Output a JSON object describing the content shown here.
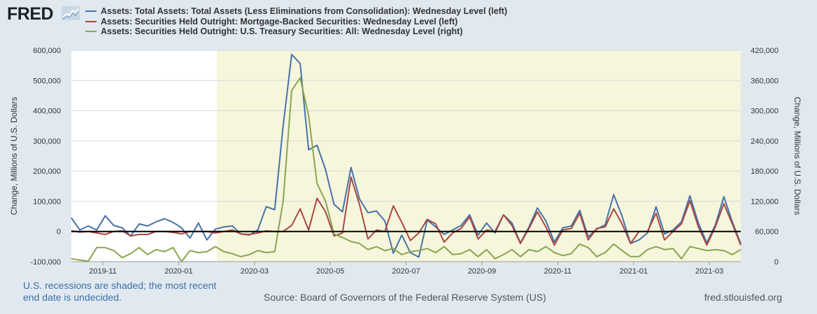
{
  "brand": {
    "logo_text": "FRED",
    "logo_icon": "chart-line-icon"
  },
  "legend": [
    {
      "label": "Assets: Total Assets: Total Assets (Less Eliminations from Consolidation): Wednesday Level (left)",
      "color": "#4572a7"
    },
    {
      "label": "Assets: Securities Held Outright: Mortgage-Backed Securities: Wednesday Level (left)",
      "color": "#aa4643"
    },
    {
      "label": "Assets: Securities Held Outright: U.S. Treasury Securities: All: Wednesday Level (right)",
      "color": "#89a54e"
    }
  ],
  "footer": {
    "recession_note": "U.S. recessions are shaded; the most recent end date is undecided.",
    "source": "Source: Board of Governors of the Federal Reserve System (US)",
    "url": "fred.stlouisfed.org"
  },
  "chart_data": {
    "type": "line",
    "ylabel_left": "Change, Millions of U.S. Dollars",
    "ylabel_right": "Change, Millions of U.S. Dollars",
    "ylim_left": [
      -100000,
      600000
    ],
    "ylim_right": [
      0,
      420000
    ],
    "yticks_left": [
      "-100,000",
      "0",
      "100,000",
      "200,000",
      "300,000",
      "400,000",
      "500,000",
      "600,000"
    ],
    "yticks_right": [
      "0",
      "60,000",
      "120,000",
      "180,000",
      "240,000",
      "300,000",
      "360,000",
      "420,000"
    ],
    "xticks": [
      "2019-11",
      "2020-01",
      "2020-03",
      "2020-05",
      "2020-07",
      "2020-09",
      "2020-11",
      "2021-01",
      "2021-03"
    ],
    "recession": {
      "start": "2020-02",
      "end": "ongoing"
    },
    "series": [
      {
        "name": "Total Assets (left)",
        "axis": "left",
        "values": [
          45000,
          5000,
          18000,
          5000,
          52000,
          20000,
          12000,
          -15000,
          25000,
          18000,
          32000,
          42000,
          30000,
          12000,
          -22000,
          28000,
          -28000,
          8000,
          15000,
          18000,
          -8000,
          -12000,
          5000,
          82000,
          72000,
          350000,
          586000,
          556000,
          270000,
          285000,
          205000,
          90000,
          65000,
          212000,
          108000,
          62000,
          68000,
          35000,
          -72000,
          -12000,
          -70000,
          -85000,
          38000,
          15000,
          -10000,
          5000,
          20000,
          55000,
          -12000,
          28000,
          -5000,
          55000,
          28000,
          -38000,
          15000,
          78000,
          35000,
          -35000,
          12000,
          18000,
          70000,
          -18000,
          8000,
          22000,
          122000,
          50000,
          -40000,
          -28000,
          -5000,
          82000,
          -8000,
          5000,
          32000,
          118000,
          28000,
          -38000,
          22000,
          115000,
          32000,
          -40000
        ]
      },
      {
        "name": "Mortgage-Backed Securities (left)",
        "axis": "left",
        "values": [
          2000,
          -2000,
          0,
          -5000,
          -10000,
          0,
          2000,
          -15000,
          -10000,
          -10000,
          0,
          0,
          -3000,
          -8000,
          0,
          0,
          0,
          -5000,
          0,
          5000,
          -8000,
          -10000,
          -5000,
          2000,
          0,
          0,
          20000,
          75000,
          5000,
          110000,
          65000,
          -15000,
          -5000,
          180000,
          90000,
          -25000,
          5000,
          0,
          85000,
          30000,
          -30000,
          -5000,
          40000,
          25000,
          -35000,
          -5000,
          10000,
          48000,
          -25000,
          5000,
          0,
          55000,
          20000,
          -40000,
          10000,
          65000,
          15000,
          -45000,
          5000,
          10000,
          60000,
          -28000,
          10000,
          15000,
          75000,
          25000,
          -40000,
          0,
          0,
          60000,
          -28000,
          0,
          25000,
          102000,
          15000,
          -45000,
          15000,
          92000,
          25000,
          -45000
        ]
      },
      {
        "name": "U.S. Treasury Securities (right)",
        "axis": "right",
        "values": [
          6000,
          3000,
          1000,
          28000,
          28000,
          22000,
          8000,
          16000,
          28000,
          14000,
          24000,
          20000,
          28000,
          0,
          22000,
          18000,
          20000,
          30000,
          20000,
          16000,
          10000,
          14000,
          22000,
          18000,
          20000,
          120000,
          340000,
          365000,
          290000,
          155000,
          120000,
          55000,
          48000,
          40000,
          36000,
          24000,
          30000,
          22000,
          26000,
          14000,
          20000,
          22000,
          26000,
          18000,
          30000,
          14000,
          16000,
          24000,
          10000,
          24000,
          6000,
          14000,
          24000,
          10000,
          24000,
          20000,
          30000,
          18000,
          12000,
          16000,
          35000,
          28000,
          10000,
          18000,
          35000,
          22000,
          10000,
          10000,
          24000,
          30000,
          24000,
          26000,
          6000,
          30000,
          26000,
          22000,
          24000,
          22000,
          14000,
          24000
        ]
      }
    ]
  }
}
